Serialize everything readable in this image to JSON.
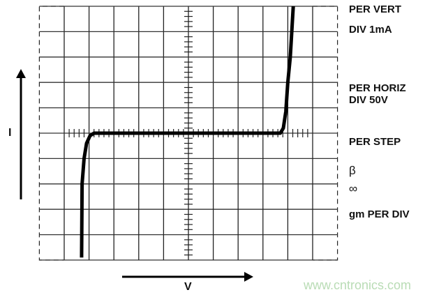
{
  "axes": {
    "y_label": "I",
    "x_label": "V"
  },
  "settings": {
    "vert_line1": "PER VERT",
    "vert_line2": "DIV 1mA",
    "horiz_line1": "PER HORIZ",
    "horiz_line2": "DIV 50V",
    "step": "PER STEP",
    "beta_symbol": "β",
    "beta_value": "∞",
    "gm": "gm PER DIV"
  },
  "watermark": "www.cntronics.com",
  "chart_data": {
    "type": "line",
    "x_unit": "V",
    "y_unit": "mA",
    "x_per_div": 50,
    "y_per_div": 1,
    "xlim": [
      -250,
      250
    ],
    "ylim": [
      -5,
      5
    ],
    "grid": true,
    "trace_color": "#000000",
    "points": [
      [
        -215,
        -4.9
      ],
      [
        -214,
        -2.0
      ],
      [
        -210,
        -1.0
      ],
      [
        -205,
        -0.4
      ],
      [
        -198,
        -0.1
      ],
      [
        -190,
        0
      ],
      [
        185,
        0
      ],
      [
        191,
        0.2
      ],
      [
        196,
        0.85
      ],
      [
        200,
        2.0
      ],
      [
        205,
        3.0
      ],
      [
        211,
        5.0
      ]
    ]
  }
}
